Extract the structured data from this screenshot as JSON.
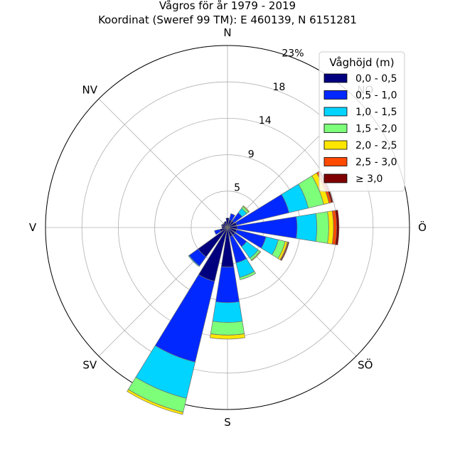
{
  "chart_data": {
    "type": "windrose",
    "title": "Vågros för år 1979 - 2019",
    "subtitle": "Koordinat (Sweref 99 TM): E 460139, N 6151281",
    "direction_labels": [
      "N",
      "NV",
      "V",
      "SV",
      "S",
      "SÖ",
      "Ö",
      "NO"
    ],
    "radial_tick_labels": [
      "5",
      "9",
      "14",
      "18",
      "23%"
    ],
    "radial_ticks": [
      4.6,
      9.2,
      13.8,
      18.4,
      23.0
    ],
    "radial_max": 23.0,
    "legend": {
      "title": "Våghöjd (m)",
      "placement": "top-right",
      "entries": [
        "0,0 - 0,5",
        "0,5 - 1,0",
        "1,0 - 1,5",
        "1,5 - 2,0",
        "2,0 - 2,5",
        "2,5 - 3,0",
        "≥ 3,0"
      ]
    },
    "bin_colors": [
      "#00007f",
      "#0028ff",
      "#00d4ff",
      "#7dff7a",
      "#ffe600",
      "#ff4a00",
      "#7f0000"
    ],
    "grid": true,
    "sector_width_deg": 22.5,
    "sectors": [
      {
        "direction_deg": 0,
        "cumulative": [
          1.2,
          1.2,
          1.2,
          1.2,
          1.2,
          1.2,
          1.2
        ]
      },
      {
        "direction_deg": 22.5,
        "cumulative": [
          1.0,
          1.8,
          1.8,
          1.8,
          1.8,
          1.8,
          1.8
        ]
      },
      {
        "direction_deg": 45,
        "cumulative": [
          1.0,
          2.3,
          3.0,
          3.3,
          3.4,
          3.4,
          3.4
        ]
      },
      {
        "direction_deg": 67.5,
        "cumulative": [
          1.2,
          8.0,
          10.5,
          12.5,
          13.2,
          13.5,
          13.7
        ]
      },
      {
        "direction_deg": 90,
        "cumulative": [
          1.2,
          8.8,
          11.3,
          12.8,
          13.4,
          13.8,
          14.1
        ]
      },
      {
        "direction_deg": 112.5,
        "cumulative": [
          1.2,
          5.0,
          6.6,
          7.5,
          7.8,
          7.9,
          8.0
        ]
      },
      {
        "direction_deg": 135,
        "cumulative": [
          1.2,
          3.0,
          4.8,
          5.1,
          5.2,
          5.2,
          5.2
        ]
      },
      {
        "direction_deg": 157.5,
        "cumulative": [
          1.2,
          4.6,
          6.5,
          6.8,
          6.8,
          6.8,
          6.8
        ]
      },
      {
        "direction_deg": 180,
        "cumulative": [
          5.0,
          9.5,
          12.0,
          13.6,
          14.1,
          14.1,
          14.1
        ]
      },
      {
        "direction_deg": 202.5,
        "cumulative": [
          7.0,
          17.5,
          22.2,
          24.0,
          24.3,
          24.3,
          24.3
        ]
      },
      {
        "direction_deg": 225,
        "cumulative": [
          4.6,
          6.0,
          6.1,
          6.1,
          6.1,
          6.1,
          6.1
        ]
      },
      {
        "direction_deg": 247.5,
        "cumulative": [
          1.0,
          1.7,
          1.7,
          1.7,
          1.7,
          1.7,
          1.7
        ]
      },
      {
        "direction_deg": 270,
        "cumulative": [
          0.7,
          0.7,
          0.7,
          0.7,
          0.7,
          0.7,
          0.7
        ]
      },
      {
        "direction_deg": 292.5,
        "cumulative": [
          0.7,
          0.8,
          0.8,
          0.8,
          0.8,
          0.8,
          0.8
        ]
      },
      {
        "direction_deg": 315,
        "cumulative": [
          0.7,
          0.7,
          0.7,
          0.7,
          0.7,
          0.7,
          0.7
        ]
      },
      {
        "direction_deg": 337.5,
        "cumulative": [
          0.8,
          0.8,
          0.8,
          0.8,
          0.8,
          0.8,
          0.8
        ]
      }
    ]
  }
}
